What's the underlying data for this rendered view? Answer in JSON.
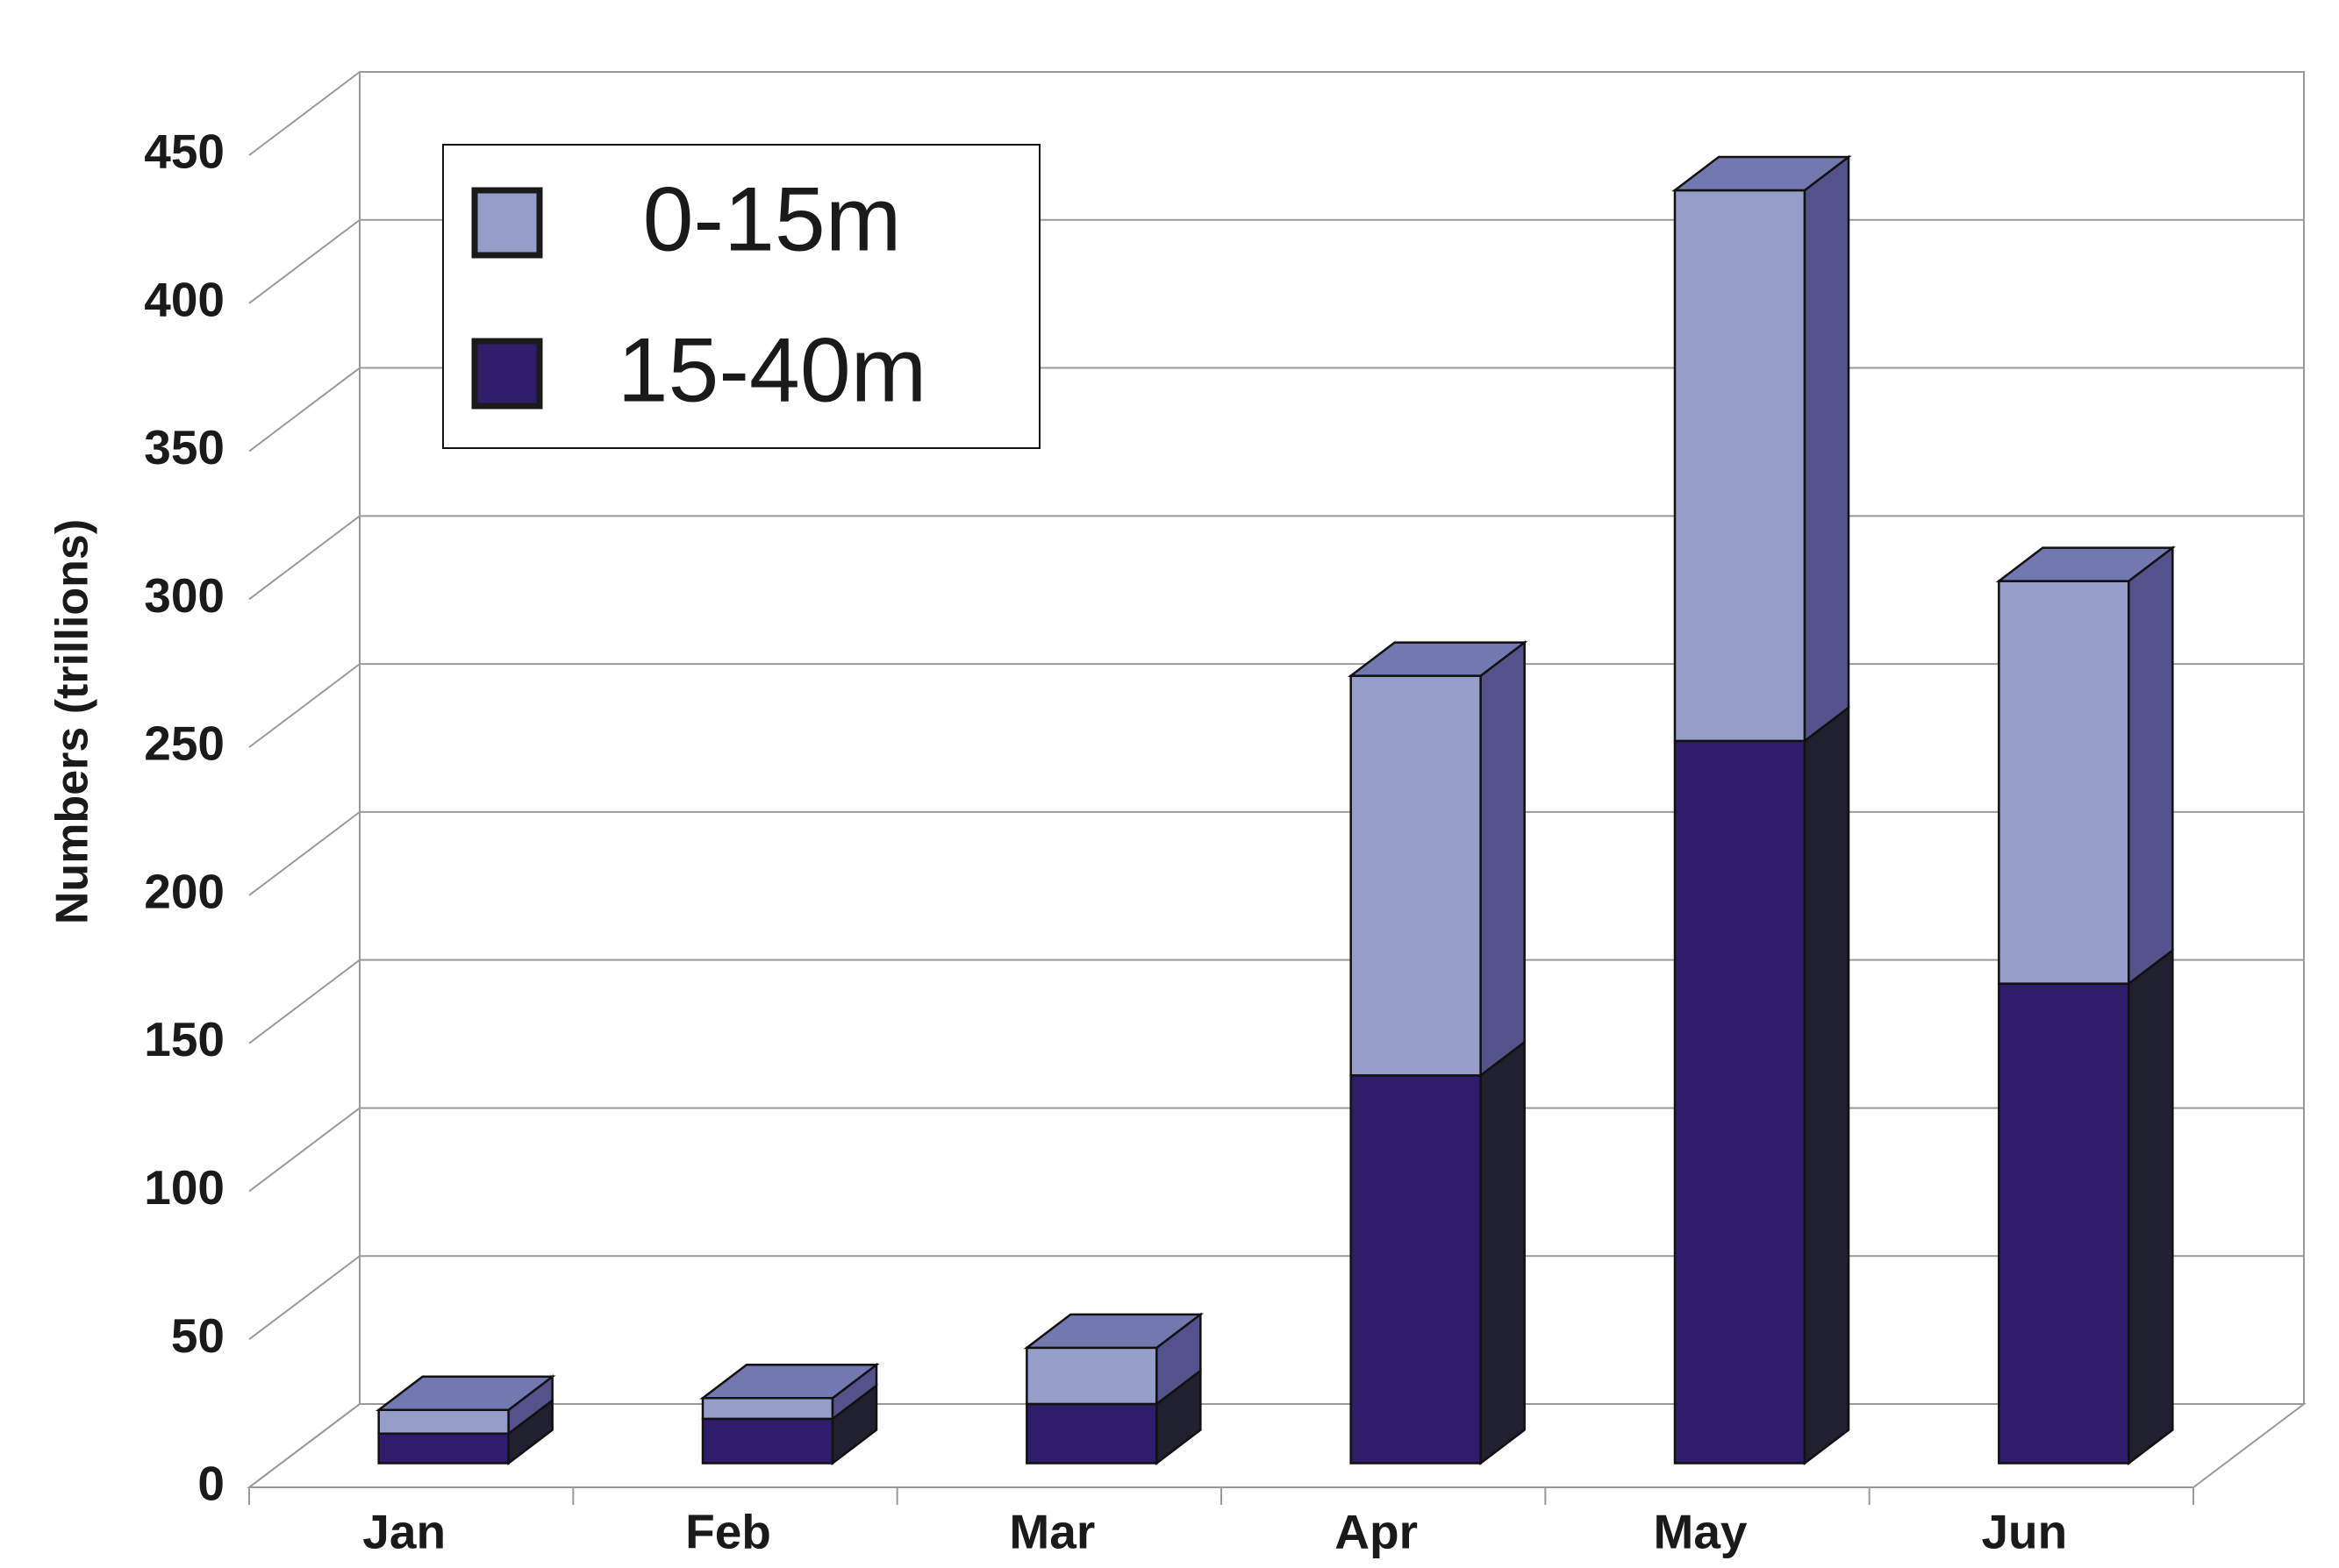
{
  "chart_data": {
    "type": "bar",
    "stacked": true,
    "y_label": "Numbers (trillions)",
    "categories": [
      "Jan",
      "Feb",
      "Mar",
      "Apr",
      "May",
      "Jun"
    ],
    "series": [
      {
        "name": "0-15m",
        "color": "#959dc9",
        "side_color": "#54528a",
        "values": [
          8,
          7,
          19,
          135,
          186,
          136
        ]
      },
      {
        "name": "15-40m",
        "color": "#2f1d6c",
        "side_color": "#21202e",
        "values": [
          10,
          15,
          20,
          131,
          244,
          162
        ]
      }
    ],
    "top_color": "#7279b0",
    "ylim": [
      0,
      450
    ],
    "yticks": [
      0,
      50,
      100,
      150,
      200,
      250,
      300,
      350,
      400,
      450
    ],
    "grid": true,
    "legend": "upper left"
  }
}
